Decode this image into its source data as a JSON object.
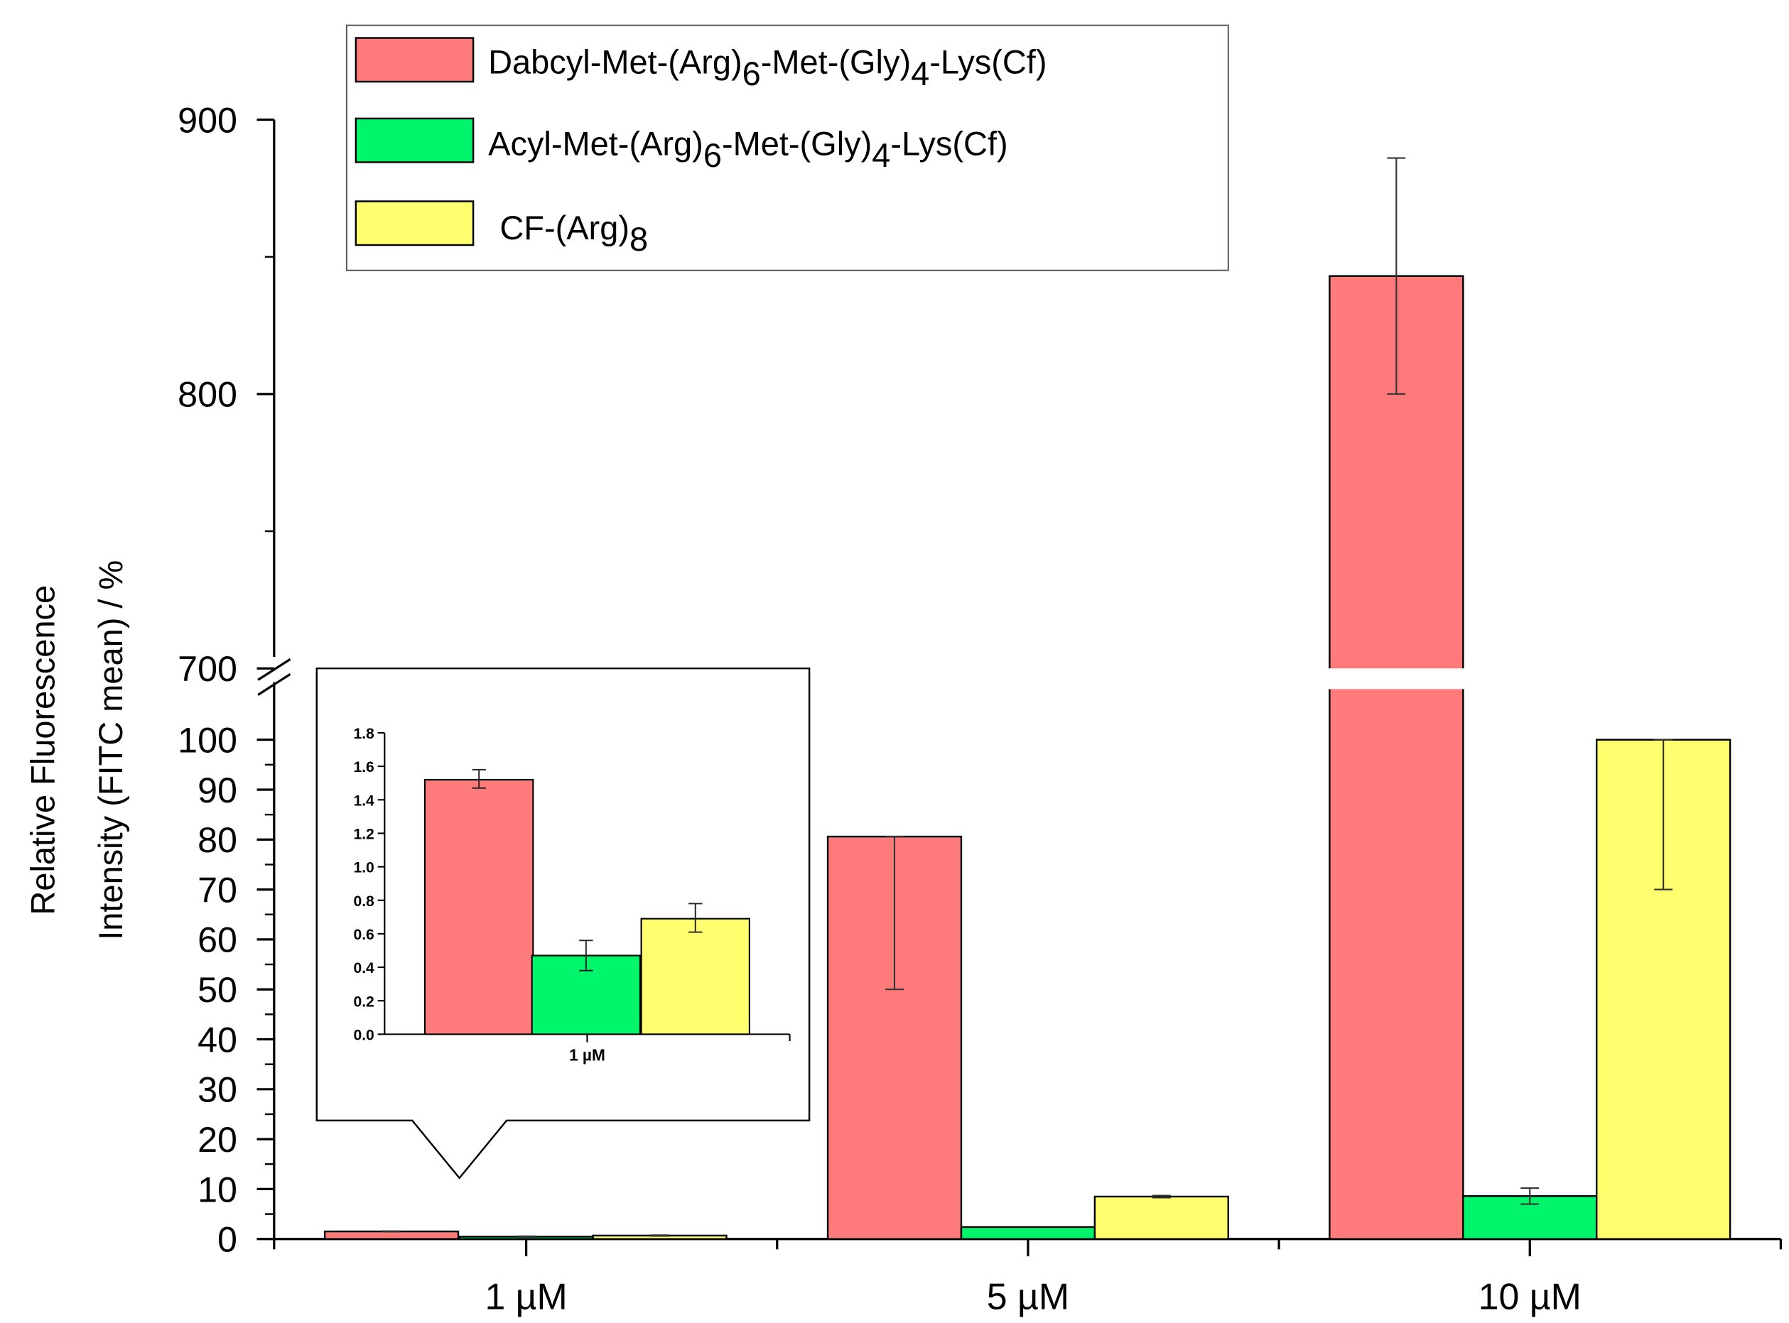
{
  "chart_data": {
    "type": "bar",
    "ylabel_line1": "Relative Fluorescence",
    "ylabel_line2": "Intensity (FITC mean) / %",
    "categories": [
      "1 µM",
      "5 µM",
      "10 µM"
    ],
    "y_axis": {
      "break": [
        100,
        700
      ],
      "lower_range": [
        0,
        100
      ],
      "upper_range": [
        700,
        900
      ],
      "lower_ticks": [
        "0",
        "10",
        "20",
        "30",
        "40",
        "50",
        "60",
        "70",
        "80",
        "90",
        "100"
      ],
      "upper_ticks": [
        "700",
        "800",
        "900"
      ]
    },
    "series": [
      {
        "name": "Dabcyl-Met-(Arg)6-Met-(Gly)4-Lys(Cf)",
        "legend": {
          "pre": "Dabcyl-Met-(Arg)",
          "sub1": "6",
          "mid": "-Met-(Gly)",
          "sub2": "4",
          "post": "-Lys(Cf)"
        },
        "color": "#ff7b7b",
        "values": [
          1.52,
          80.6,
          843
        ],
        "err_low": [
          1.47,
          50,
          800
        ],
        "err_high": [
          1.58,
          80.6,
          886
        ]
      },
      {
        "name": "Acyl-Met-(Arg)6-Met-(Gly)4-Lys(Cf)",
        "legend": {
          "pre": "Acyl-Met-(Arg)",
          "sub1": "6",
          "mid": "-Met-(Gly)",
          "sub2": "4",
          "post": "-Lys(Cf)"
        },
        "color": "#00f56a",
        "values": [
          0.47,
          2.4,
          8.6
        ],
        "err_low": [
          0.38,
          2.4,
          7.0
        ],
        "err_high": [
          0.56,
          2.4,
          10.2
        ]
      },
      {
        "name": "CF-(Arg)8",
        "legend": {
          "pre": "CF-(Arg)",
          "sub1": "8",
          "mid": "",
          "sub2": "",
          "post": ""
        },
        "color": "#ffff70",
        "values": [
          0.69,
          8.5,
          100
        ],
        "err_low": [
          0.61,
          8.3,
          70
        ],
        "err_high": [
          0.78,
          8.7,
          100
        ]
      }
    ],
    "inset": {
      "category": "1 µM",
      "ylim": [
        0,
        1.8
      ],
      "yticks": [
        "0.0",
        "0.2",
        "0.4",
        "0.6",
        "0.8",
        "1.0",
        "1.2",
        "1.4",
        "1.6",
        "1.8"
      ],
      "values": [
        1.52,
        0.47,
        0.69
      ],
      "err_low": [
        1.47,
        0.38,
        0.61
      ],
      "err_high": [
        1.58,
        0.56,
        0.78
      ]
    }
  }
}
